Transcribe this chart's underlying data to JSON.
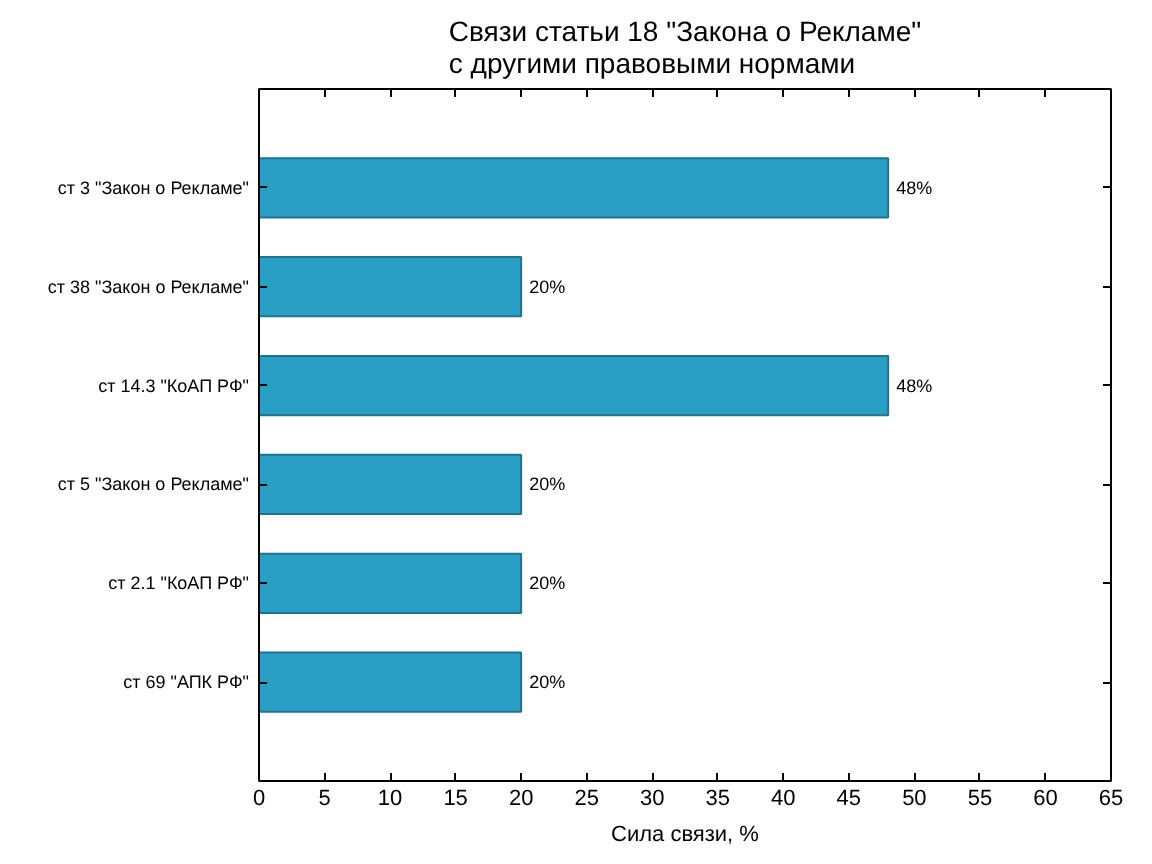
{
  "chart_data": {
    "type": "bar",
    "orientation": "horizontal",
    "title": "Связи статьи 18 \"Закона о Рекламе\"\nс другими правовыми нормами",
    "xlabel": "Сила связи, %",
    "categories": [
      "ст 3 \"Закон о Рекламе\"",
      "ст 38 \"Закон о Рекламе\"",
      "ст 14.3 \"КоАП РФ\"",
      "ст 5 \"Закон о Рекламе\"",
      "ст 2.1 \"КоАП РФ\"",
      "ст 69 \"АПК РФ\""
    ],
    "values": [
      48,
      20,
      48,
      20,
      20,
      20
    ],
    "value_labels": [
      "48%",
      "20%",
      "48%",
      "20%",
      "20%",
      "20%"
    ],
    "color": "#2a9fc6",
    "xlim": [
      0,
      65
    ],
    "xticks": [
      0,
      5,
      10,
      15,
      20,
      25,
      30,
      35,
      40,
      45,
      50,
      55,
      60,
      65
    ],
    "grid": false
  }
}
